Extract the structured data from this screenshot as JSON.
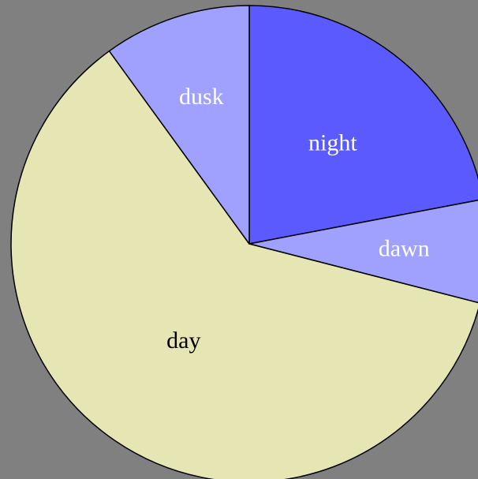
{
  "background_color": "#808080",
  "chart_data": {
    "type": "pie",
    "title": "",
    "start_angle_deg": 0,
    "direction": "clockwise",
    "slices": [
      {
        "label": "night",
        "value": 22.0,
        "color": "#5a5aff",
        "label_color": "#ffffff"
      },
      {
        "label": "dawn",
        "value": 7.0,
        "color": "#a0a0ff",
        "label_color": "#ffffff"
      },
      {
        "label": "day",
        "value": 61.0,
        "color": "#e6e6b4",
        "label_color": "#000000"
      },
      {
        "label": "dusk",
        "value": 10.0,
        "color": "#a0a0ff",
        "label_color": "#ffffff"
      }
    ],
    "outline_color": "#000000",
    "legend": "none",
    "labels_inside": true
  }
}
